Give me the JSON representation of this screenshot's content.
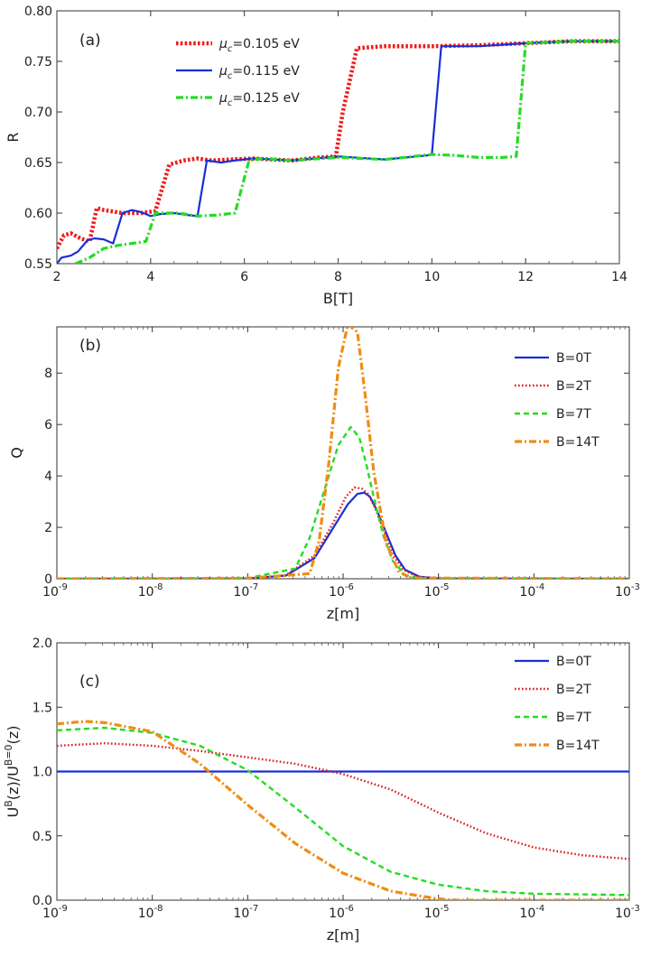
{
  "chart_data": [
    {
      "type": "line",
      "panel_label": "(a)",
      "xlabel": "B[T]",
      "ylabel": "R",
      "xscale": "linear",
      "xlim": [
        2,
        14
      ],
      "ylim": [
        0.55,
        0.8
      ],
      "xticks": [
        2,
        4,
        6,
        8,
        10,
        12,
        14
      ],
      "xtick_labels": [
        "2",
        "4",
        "6",
        "8",
        "10",
        "12",
        "14"
      ],
      "yticks": [
        0.55,
        0.6,
        0.65,
        0.7,
        0.75,
        0.8
      ],
      "ytick_labels": [
        "0.55",
        "0.60",
        "0.65",
        "0.70",
        "0.75",
        "0.80"
      ],
      "legend_position": "top-left",
      "series": [
        {
          "name_pre": "μ",
          "name_sub": "c",
          "name_post": "=0.105 eV",
          "color": "#ee1c1c",
          "dash": "dotted-thick",
          "x": [
            2.0,
            2.15,
            2.3,
            2.5,
            2.7,
            2.85,
            3.0,
            3.4,
            3.8,
            4.1,
            4.4,
            4.7,
            5.0,
            5.3,
            5.7,
            6.2,
            7.0,
            7.6,
            7.95,
            8.1,
            8.4,
            9.0,
            10.0,
            11.0,
            12.0,
            13.0,
            14.0
          ],
          "y": [
            0.565,
            0.578,
            0.58,
            0.575,
            0.572,
            0.605,
            0.603,
            0.6,
            0.6,
            0.602,
            0.648,
            0.652,
            0.654,
            0.652,
            0.653,
            0.654,
            0.652,
            0.655,
            0.656,
            0.7,
            0.763,
            0.765,
            0.765,
            0.766,
            0.768,
            0.77,
            0.77
          ]
        },
        {
          "name_pre": "μ",
          "name_sub": "c",
          "name_post": "=0.115 eV",
          "color": "#1a2ed8",
          "dash": "solid",
          "x": [
            2.0,
            2.1,
            2.3,
            2.45,
            2.65,
            2.8,
            3.0,
            3.2,
            3.4,
            3.6,
            3.8,
            4.0,
            4.2,
            4.5,
            4.8,
            5.0,
            5.2,
            5.5,
            5.8,
            6.2,
            7.0,
            8.0,
            9.0,
            9.9,
            10.0,
            10.2,
            11.0,
            12.0,
            13.0,
            14.0
          ],
          "y": [
            0.55,
            0.556,
            0.558,
            0.562,
            0.573,
            0.575,
            0.574,
            0.57,
            0.6,
            0.603,
            0.601,
            0.597,
            0.599,
            0.6,
            0.598,
            0.597,
            0.652,
            0.65,
            0.652,
            0.654,
            0.652,
            0.656,
            0.653,
            0.657,
            0.658,
            0.765,
            0.765,
            0.768,
            0.77,
            0.77
          ]
        },
        {
          "name_pre": "μ",
          "name_sub": "c",
          "name_post": "=0.125 eV",
          "color": "#22dd22",
          "dash": "dash-dot",
          "x": [
            2.4,
            2.7,
            3.0,
            3.3,
            3.6,
            3.9,
            4.1,
            4.3,
            4.6,
            5.0,
            5.4,
            5.8,
            6.1,
            6.4,
            7.0,
            8.0,
            9.0,
            10.0,
            10.5,
            11.0,
            11.5,
            11.8,
            12.0,
            13.0,
            14.0
          ],
          "y": [
            0.55,
            0.556,
            0.565,
            0.568,
            0.57,
            0.572,
            0.6,
            0.6,
            0.6,
            0.597,
            0.598,
            0.6,
            0.652,
            0.654,
            0.652,
            0.655,
            0.653,
            0.658,
            0.657,
            0.655,
            0.655,
            0.656,
            0.768,
            0.77,
            0.77
          ]
        }
      ]
    },
    {
      "type": "line",
      "panel_label": "(b)",
      "xlabel": "z[m]",
      "ylabel": "Q",
      "xscale": "log",
      "xlim": [
        1e-09,
        0.001
      ],
      "ylim": [
        0,
        9.8
      ],
      "xticks": [
        -9,
        -8,
        -7,
        -6,
        -5,
        -4,
        -3
      ],
      "xtick_labels": [
        "-9",
        "-8",
        "-7",
        "-6",
        "-5",
        "-4",
        "-3"
      ],
      "xtick_base": "10",
      "yticks": [
        0,
        2,
        4,
        6,
        8
      ],
      "ytick_labels": [
        "0",
        "2",
        "4",
        "6",
        "8"
      ],
      "legend_position": "top-right",
      "series": [
        {
          "name": "B=0T",
          "color": "#1a2ed8",
          "dash": "solid",
          "x": [
            -9,
            -7,
            -6.6,
            -6.3,
            -6.1,
            -5.95,
            -5.85,
            -5.78,
            -5.72,
            -5.65,
            -5.55,
            -5.45,
            -5.35,
            -5.2,
            -5.0,
            -3
          ],
          "y": [
            0,
            0.01,
            0.12,
            0.8,
            2.0,
            2.9,
            3.3,
            3.35,
            3.2,
            2.7,
            1.8,
            0.9,
            0.35,
            0.08,
            0.01,
            0
          ]
        },
        {
          "name": "B=2T",
          "color": "#d81c1c",
          "dash": "dotted",
          "x": [
            -9,
            -7,
            -6.6,
            -6.3,
            -6.1,
            -5.97,
            -5.88,
            -5.8,
            -5.74,
            -5.67,
            -5.57,
            -5.47,
            -5.37,
            -5.22,
            -5.0,
            -3
          ],
          "y": [
            0,
            0.01,
            0.14,
            0.9,
            2.2,
            3.2,
            3.55,
            3.5,
            3.3,
            2.8,
            1.85,
            0.9,
            0.35,
            0.08,
            0.01,
            0
          ]
        },
        {
          "name": "B=7T",
          "color": "#22dd22",
          "dash": "dashed",
          "x": [
            -9,
            -7,
            -6.5,
            -6.35,
            -6.2,
            -6.05,
            -5.92,
            -5.83,
            -5.76,
            -5.68,
            -5.58,
            -5.48,
            -5.35,
            -5.2,
            -3
          ],
          "y": [
            0,
            0.02,
            0.4,
            1.6,
            3.4,
            5.2,
            5.9,
            5.5,
            4.5,
            3.2,
            1.7,
            0.7,
            0.15,
            0.02,
            0
          ]
        },
        {
          "name": "B=14T",
          "color": "#f08c14",
          "dash": "dash-dot",
          "x": [
            -9,
            -7,
            -6.35,
            -6.25,
            -6.15,
            -6.05,
            -5.95,
            -5.85,
            -5.77,
            -5.68,
            -5.55,
            -5.42,
            -5.3,
            -3
          ],
          "y": [
            0,
            0.02,
            0.2,
            1.5,
            4.5,
            8.2,
            9.9,
            9.6,
            7.2,
            4.2,
            1.4,
            0.3,
            0.03,
            0
          ]
        }
      ]
    },
    {
      "type": "line",
      "panel_label": "(c)",
      "xlabel": "z[m]",
      "ylabel_base": "U",
      "ylabel_sup1": "B",
      "ylabel_mid": "(z)/U",
      "ylabel_sup2": "B=0",
      "ylabel_end": "(z)",
      "xscale": "log",
      "xlim": [
        1e-09,
        0.001
      ],
      "ylim": [
        0,
        2.0
      ],
      "xticks": [
        -9,
        -8,
        -7,
        -6,
        -5,
        -4,
        -3
      ],
      "xtick_labels": [
        "-9",
        "-8",
        "-7",
        "-6",
        "-5",
        "-4",
        "-3"
      ],
      "xtick_base": "10",
      "yticks": [
        0,
        0.5,
        1.0,
        1.5,
        2.0
      ],
      "ytick_labels": [
        "0.0",
        "0.5",
        "1.0",
        "1.5",
        "2.0"
      ],
      "legend_position": "top-right",
      "series": [
        {
          "name": "B=0T",
          "color": "#1a2ed8",
          "dash": "solid",
          "x": [
            -9,
            -3
          ],
          "y": [
            1.0,
            1.0
          ]
        },
        {
          "name": "B=2T",
          "color": "#d81c1c",
          "dash": "dotted",
          "x": [
            -9,
            -8.5,
            -8,
            -7.5,
            -7,
            -6.5,
            -6,
            -5.5,
            -5,
            -4.5,
            -4,
            -3.5,
            -3
          ],
          "y": [
            1.2,
            1.22,
            1.2,
            1.16,
            1.11,
            1.06,
            0.98,
            0.86,
            0.68,
            0.52,
            0.41,
            0.35,
            0.32
          ]
        },
        {
          "name": "B=7T",
          "color": "#22dd22",
          "dash": "dashed",
          "x": [
            -9,
            -8.5,
            -8,
            -7.5,
            -7,
            -6.5,
            -6,
            -5.5,
            -5,
            -4.5,
            -4,
            -3.5,
            -3
          ],
          "y": [
            1.32,
            1.34,
            1.3,
            1.2,
            1.01,
            0.72,
            0.42,
            0.22,
            0.12,
            0.07,
            0.05,
            0.045,
            0.04
          ]
        },
        {
          "name": "B=14T",
          "color": "#f08c14",
          "dash": "dash-dot",
          "x": [
            -9,
            -8.7,
            -8.5,
            -8,
            -7.5,
            -7,
            -6.5,
            -6,
            -5.5,
            -5,
            -4.8,
            -4.5,
            -3
          ],
          "y": [
            1.37,
            1.39,
            1.38,
            1.31,
            1.06,
            0.74,
            0.44,
            0.21,
            0.07,
            0.01,
            0.0,
            0.0,
            0.0
          ]
        }
      ]
    }
  ]
}
